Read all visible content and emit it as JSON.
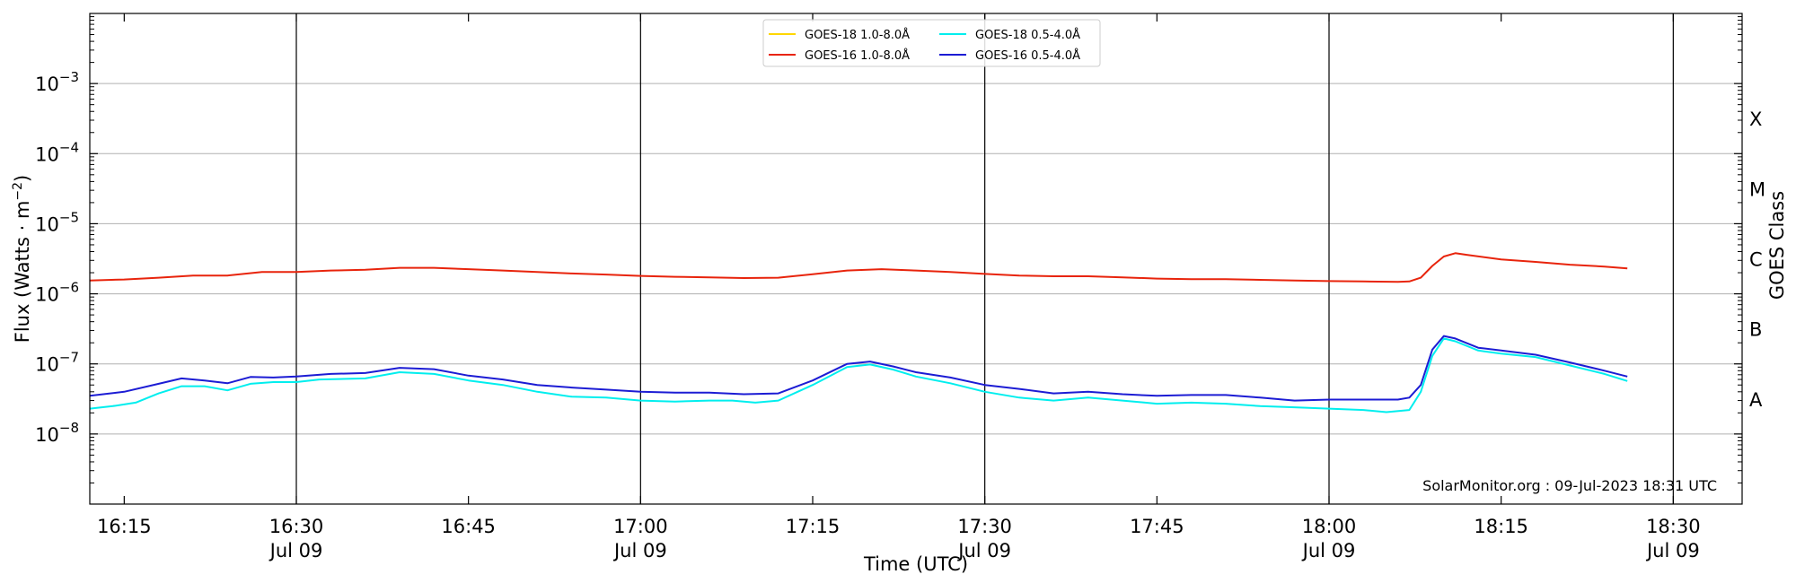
{
  "chart_data": {
    "type": "line",
    "xlabel": "Time (UTC)",
    "ylabel_main": "Flux (Watts · m",
    "ylabel_sup": "−2",
    "ylabel_close": ")",
    "ylabel_right": "GOES Class",
    "y_scale": "log",
    "ylim": [
      1e-09,
      0.01
    ],
    "xlim": [
      "16:12",
      "18:36"
    ],
    "grid": "horizontal",
    "legend_position": "top-center",
    "annotation": "SolarMonitor.org : 09-Jul-2023 18:31 UTC",
    "x_ticks": [
      {
        "time": "16:15",
        "label": "16:15",
        "date": ""
      },
      {
        "time": "16:30",
        "label": "16:30",
        "date": "Jul 09"
      },
      {
        "time": "16:45",
        "label": "16:45",
        "date": ""
      },
      {
        "time": "17:00",
        "label": "17:00",
        "date": "Jul 09"
      },
      {
        "time": "17:15",
        "label": "17:15",
        "date": ""
      },
      {
        "time": "17:30",
        "label": "17:30",
        "date": "Jul 09"
      },
      {
        "time": "17:45",
        "label": "17:45",
        "date": ""
      },
      {
        "time": "18:00",
        "label": "18:00",
        "date": "Jul 09"
      },
      {
        "time": "18:15",
        "label": "18:15",
        "date": ""
      },
      {
        "time": "18:30",
        "label": "18:30",
        "date": "Jul 09"
      }
    ],
    "vertical_lines": [
      "16:30",
      "17:00",
      "17:30",
      "18:00",
      "18:30"
    ],
    "y_ticks": [
      {
        "value": 1e-08,
        "base": "10",
        "exp": "−8"
      },
      {
        "value": 1e-07,
        "base": "10",
        "exp": "−7"
      },
      {
        "value": 1e-06,
        "base": "10",
        "exp": "−6"
      },
      {
        "value": 1e-05,
        "base": "10",
        "exp": "−5"
      },
      {
        "value": 0.0001,
        "base": "10",
        "exp": "−4"
      },
      {
        "value": 0.001,
        "base": "10",
        "exp": "−3"
      }
    ],
    "goes_classes": [
      {
        "label": "A",
        "value": 3.16e-08
      },
      {
        "label": "B",
        "value": 3.16e-07
      },
      {
        "label": "C",
        "value": 3.16e-06
      },
      {
        "label": "M",
        "value": 3.16e-05
      },
      {
        "label": "X",
        "value": 0.000316
      }
    ],
    "series": [
      {
        "name": "GOES-18 1.0-8.0Å",
        "color": "#ffd700",
        "points": []
      },
      {
        "name": "GOES-16 1.0-8.0Å",
        "color": "#e8240c",
        "points": [
          [
            "16:12",
            1.55e-06
          ],
          [
            "16:15",
            1.6e-06
          ],
          [
            "16:18",
            1.7e-06
          ],
          [
            "16:21",
            1.82e-06
          ],
          [
            "16:24",
            1.82e-06
          ],
          [
            "16:27",
            2.05e-06
          ],
          [
            "16:30",
            2.05e-06
          ],
          [
            "16:33",
            2.15e-06
          ],
          [
            "16:36",
            2.2e-06
          ],
          [
            "16:39",
            2.35e-06
          ],
          [
            "16:42",
            2.35e-06
          ],
          [
            "16:45",
            2.25e-06
          ],
          [
            "16:48",
            2.15e-06
          ],
          [
            "16:51",
            2.05e-06
          ],
          [
            "16:54",
            1.95e-06
          ],
          [
            "16:57",
            1.88e-06
          ],
          [
            "17:00",
            1.8e-06
          ],
          [
            "17:03",
            1.75e-06
          ],
          [
            "17:06",
            1.72e-06
          ],
          [
            "17:09",
            1.68e-06
          ],
          [
            "17:12",
            1.7e-06
          ],
          [
            "17:15",
            1.9e-06
          ],
          [
            "17:18",
            2.15e-06
          ],
          [
            "17:21",
            2.25e-06
          ],
          [
            "17:24",
            2.15e-06
          ],
          [
            "17:27",
            2.05e-06
          ],
          [
            "17:30",
            1.92e-06
          ],
          [
            "17:33",
            1.82e-06
          ],
          [
            "17:36",
            1.78e-06
          ],
          [
            "17:39",
            1.78e-06
          ],
          [
            "17:42",
            1.72e-06
          ],
          [
            "17:45",
            1.65e-06
          ],
          [
            "17:48",
            1.62e-06
          ],
          [
            "17:51",
            1.62e-06
          ],
          [
            "17:54",
            1.58e-06
          ],
          [
            "17:57",
            1.55e-06
          ],
          [
            "18:00",
            1.52e-06
          ],
          [
            "18:03",
            1.5e-06
          ],
          [
            "18:06",
            1.48e-06
          ],
          [
            "18:07",
            1.5e-06
          ],
          [
            "18:08",
            1.7e-06
          ],
          [
            "18:09",
            2.5e-06
          ],
          [
            "18:10",
            3.4e-06
          ],
          [
            "18:11",
            3.8e-06
          ],
          [
            "18:12",
            3.6e-06
          ],
          [
            "18:15",
            3.1e-06
          ],
          [
            "18:18",
            2.85e-06
          ],
          [
            "18:21",
            2.6e-06
          ],
          [
            "18:24",
            2.45e-06
          ],
          [
            "18:26",
            2.3e-06
          ]
        ]
      },
      {
        "name": "GOES-18 0.5-4.0Å",
        "color": "#00eeee",
        "points": [
          [
            "16:12",
            2.3e-08
          ],
          [
            "16:14",
            2.5e-08
          ],
          [
            "16:16",
            2.8e-08
          ],
          [
            "16:18",
            3.8e-08
          ],
          [
            "16:20",
            4.8e-08
          ],
          [
            "16:22",
            4.8e-08
          ],
          [
            "16:24",
            4.2e-08
          ],
          [
            "16:26",
            5.2e-08
          ],
          [
            "16:28",
            5.5e-08
          ],
          [
            "16:30",
            5.5e-08
          ],
          [
            "16:32",
            6e-08
          ],
          [
            "16:36",
            6.2e-08
          ],
          [
            "16:39",
            7.6e-08
          ],
          [
            "16:42",
            7.2e-08
          ],
          [
            "16:45",
            5.8e-08
          ],
          [
            "16:48",
            5e-08
          ],
          [
            "16:51",
            4e-08
          ],
          [
            "16:54",
            3.4e-08
          ],
          [
            "16:57",
            3.3e-08
          ],
          [
            "17:00",
            3e-08
          ],
          [
            "17:03",
            2.9e-08
          ],
          [
            "17:06",
            3e-08
          ],
          [
            "17:08",
            3e-08
          ],
          [
            "17:10",
            2.8e-08
          ],
          [
            "17:12",
            3e-08
          ],
          [
            "17:15",
            5e-08
          ],
          [
            "17:18",
            9e-08
          ],
          [
            "17:20",
            9.8e-08
          ],
          [
            "17:22",
            8.3e-08
          ],
          [
            "17:24",
            6.6e-08
          ],
          [
            "17:27",
            5.3e-08
          ],
          [
            "17:30",
            4e-08
          ],
          [
            "17:33",
            3.3e-08
          ],
          [
            "17:36",
            3e-08
          ],
          [
            "17:39",
            3.3e-08
          ],
          [
            "17:42",
            3e-08
          ],
          [
            "17:45",
            2.7e-08
          ],
          [
            "17:48",
            2.8e-08
          ],
          [
            "17:51",
            2.7e-08
          ],
          [
            "17:54",
            2.5e-08
          ],
          [
            "17:57",
            2.4e-08
          ],
          [
            "18:00",
            2.3e-08
          ],
          [
            "18:03",
            2.2e-08
          ],
          [
            "18:05",
            2.05e-08
          ],
          [
            "18:07",
            2.2e-08
          ],
          [
            "18:08",
            4e-08
          ],
          [
            "18:09",
            1.3e-07
          ],
          [
            "18:10",
            2.3e-07
          ],
          [
            "18:11",
            2.1e-07
          ],
          [
            "18:13",
            1.55e-07
          ],
          [
            "18:15",
            1.4e-07
          ],
          [
            "18:18",
            1.25e-07
          ],
          [
            "18:21",
            9.5e-08
          ],
          [
            "18:24",
            7.2e-08
          ],
          [
            "18:26",
            5.7e-08
          ]
        ]
      },
      {
        "name": "GOES-16 0.5-4.0Å",
        "color": "#1c1cd4",
        "points": [
          [
            "16:12",
            3.5e-08
          ],
          [
            "16:15",
            4e-08
          ],
          [
            "16:18",
            5.2e-08
          ],
          [
            "16:20",
            6.2e-08
          ],
          [
            "16:22",
            5.8e-08
          ],
          [
            "16:24",
            5.3e-08
          ],
          [
            "16:26",
            6.5e-08
          ],
          [
            "16:28",
            6.4e-08
          ],
          [
            "16:30",
            6.6e-08
          ],
          [
            "16:33",
            7.2e-08
          ],
          [
            "16:36",
            7.4e-08
          ],
          [
            "16:39",
            8.8e-08
          ],
          [
            "16:42",
            8.4e-08
          ],
          [
            "16:45",
            6.8e-08
          ],
          [
            "16:48",
            6e-08
          ],
          [
            "16:51",
            5e-08
          ],
          [
            "16:54",
            4.6e-08
          ],
          [
            "16:57",
            4.3e-08
          ],
          [
            "17:00",
            4e-08
          ],
          [
            "17:03",
            3.9e-08
          ],
          [
            "17:06",
            3.9e-08
          ],
          [
            "17:09",
            3.7e-08
          ],
          [
            "17:12",
            3.8e-08
          ],
          [
            "17:15",
            5.8e-08
          ],
          [
            "17:18",
            1e-07
          ],
          [
            "17:20",
            1.08e-07
          ],
          [
            "17:22",
            9.2e-08
          ],
          [
            "17:24",
            7.6e-08
          ],
          [
            "17:27",
            6.4e-08
          ],
          [
            "17:30",
            5e-08
          ],
          [
            "17:33",
            4.4e-08
          ],
          [
            "17:36",
            3.8e-08
          ],
          [
            "17:39",
            4e-08
          ],
          [
            "17:42",
            3.7e-08
          ],
          [
            "17:45",
            3.5e-08
          ],
          [
            "17:48",
            3.6e-08
          ],
          [
            "17:51",
            3.6e-08
          ],
          [
            "17:54",
            3.3e-08
          ],
          [
            "17:57",
            3e-08
          ],
          [
            "18:00",
            3.1e-08
          ],
          [
            "18:03",
            3.1e-08
          ],
          [
            "18:06",
            3.1e-08
          ],
          [
            "18:07",
            3.3e-08
          ],
          [
            "18:08",
            5e-08
          ],
          [
            "18:09",
            1.6e-07
          ],
          [
            "18:10",
            2.5e-07
          ],
          [
            "18:11",
            2.3e-07
          ],
          [
            "18:13",
            1.7e-07
          ],
          [
            "18:15",
            1.55e-07
          ],
          [
            "18:18",
            1.35e-07
          ],
          [
            "18:21",
            1.05e-07
          ],
          [
            "18:24",
            8e-08
          ],
          [
            "18:26",
            6.6e-08
          ]
        ]
      }
    ]
  }
}
